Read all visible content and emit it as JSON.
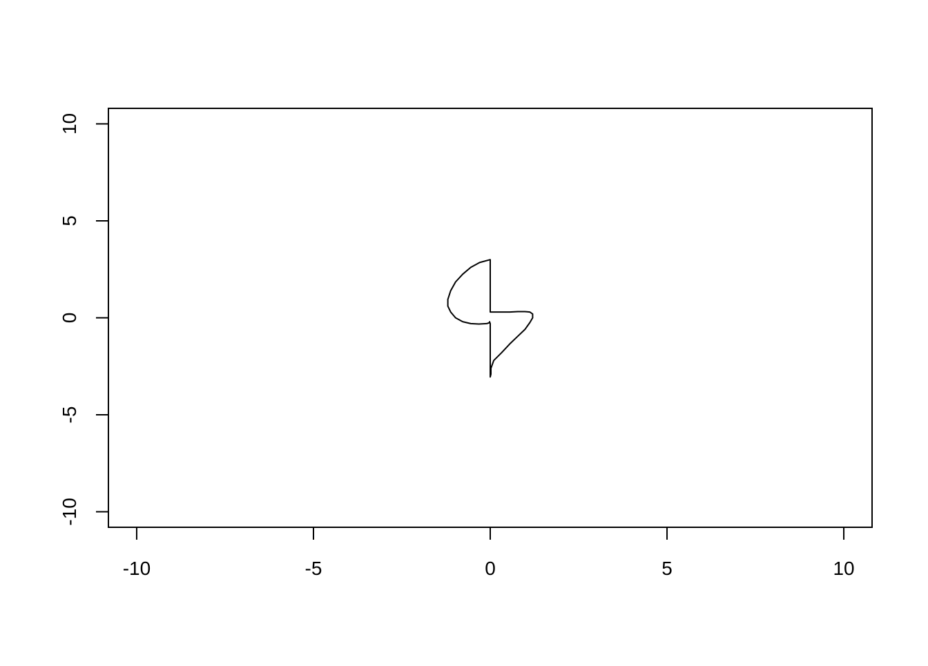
{
  "chart_data": {
    "type": "line",
    "title": "",
    "xlabel": "",
    "ylabel": "",
    "xlim": [
      -10.8,
      10.8
    ],
    "ylim": [
      -10.8,
      10.8
    ],
    "x_ticks": [
      -10,
      -5,
      0,
      5,
      10
    ],
    "y_ticks": [
      -10,
      -5,
      0,
      5,
      10
    ],
    "x_tick_labels": [
      "-10",
      "-5",
      "0",
      "5",
      "10"
    ],
    "y_tick_labels": [
      "-10",
      "-5",
      "0",
      "5",
      "10"
    ],
    "grid": false,
    "legend": "none",
    "line_color": "#000000",
    "series": [
      {
        "x": [
          0.0,
          -0.3,
          -0.55,
          -0.78,
          -0.98,
          -1.12,
          -1.2,
          -1.2,
          -1.12,
          -0.98,
          -0.78,
          -0.55,
          -0.32,
          -0.1,
          -0.02,
          -0.02,
          0.0,
          0.0,
          0.0,
          0.02,
          0.02,
          0.1,
          0.32,
          0.55,
          0.78,
          0.98,
          1.12,
          1.2,
          1.2,
          1.12,
          0.98,
          0.78,
          0.55,
          0.3,
          0.0,
          0.0,
          0.0
        ],
        "y": [
          3.0,
          2.85,
          2.6,
          2.25,
          1.85,
          1.4,
          0.95,
          0.6,
          0.3,
          0.0,
          -0.2,
          -0.3,
          -0.32,
          -0.3,
          -0.25,
          -0.2,
          -0.3,
          -1.5,
          -3.05,
          -2.9,
          -2.6,
          -2.2,
          -1.8,
          -1.35,
          -0.95,
          -0.6,
          -0.25,
          0.0,
          0.2,
          0.3,
          0.32,
          0.32,
          0.3,
          0.3,
          0.3,
          1.5,
          3.0
        ]
      }
    ]
  }
}
